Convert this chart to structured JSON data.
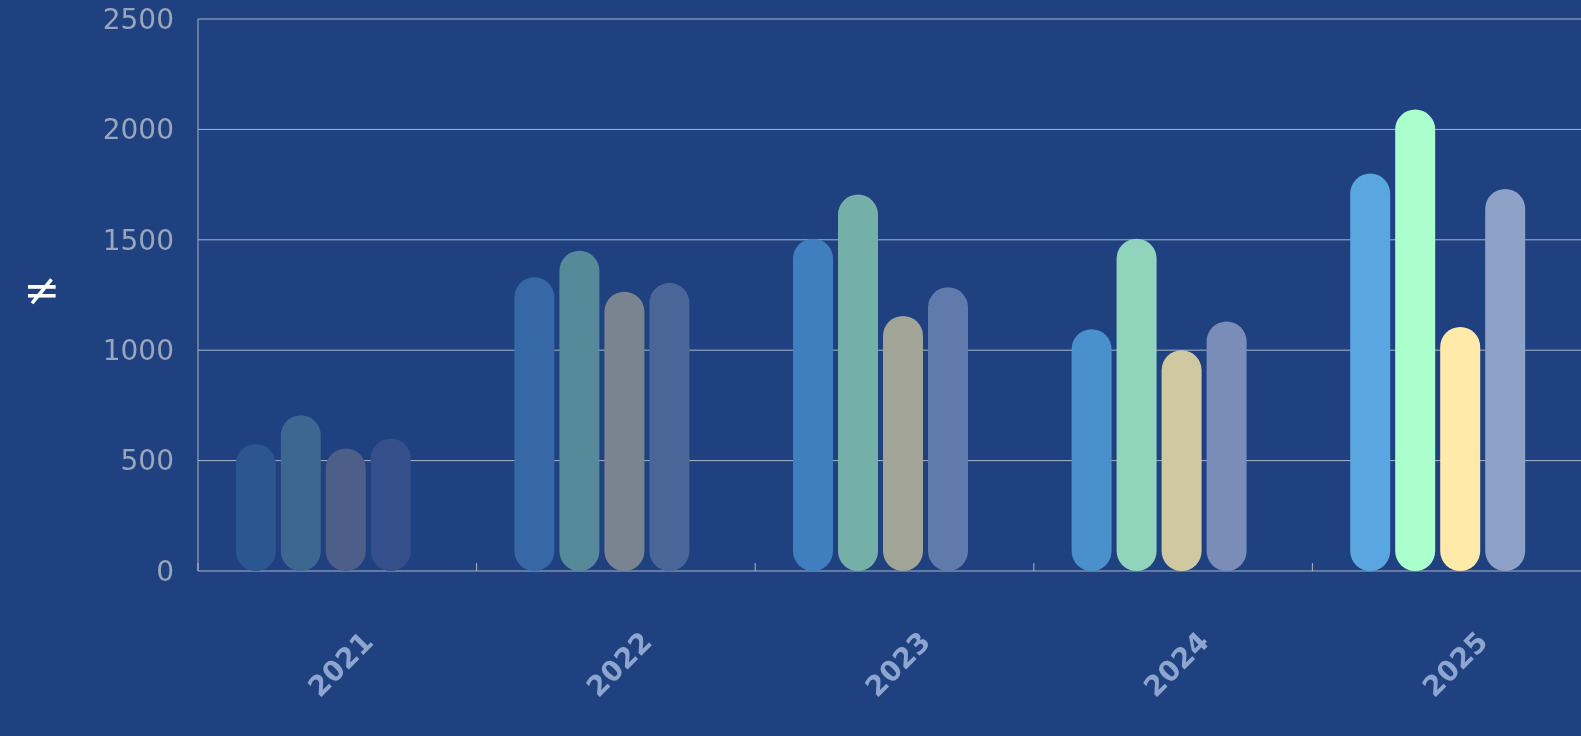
{
  "chart_data": {
    "type": "bar",
    "ylabel": "≠",
    "categories": [
      "2021",
      "2022",
      "2023",
      "2024",
      "2025"
    ],
    "series": [
      {
        "colors": [
          "#2b5690",
          "#3668a6",
          "#3f7fbf",
          "#4a90cc",
          "#5aa6e0"
        ],
        "values": [
          575,
          1330,
          1505,
          1095,
          1800
        ]
      },
      {
        "colors": [
          "#3d6690",
          "#568a9a",
          "#74b0a8",
          "#8fd4bb",
          "#aaffcc"
        ],
        "values": [
          705,
          1450,
          1705,
          1505,
          2090
        ]
      },
      {
        "colors": [
          "#4d5f88",
          "#7a8490",
          "#a2a596",
          "#d0c8a0",
          "#ffeaaa"
        ],
        "values": [
          555,
          1265,
          1155,
          1000,
          1105
        ]
      },
      {
        "colors": [
          "#344f8a",
          "#4a6699",
          "#607aab",
          "#7a8cb8",
          "#8ea2c8"
        ],
        "values": [
          600,
          1305,
          1285,
          1130,
          1730
        ]
      }
    ],
    "ylim": [
      0,
      2500
    ],
    "yticks": [
      0,
      500,
      1000,
      1500,
      2000,
      2500
    ],
    "grid": "y"
  }
}
